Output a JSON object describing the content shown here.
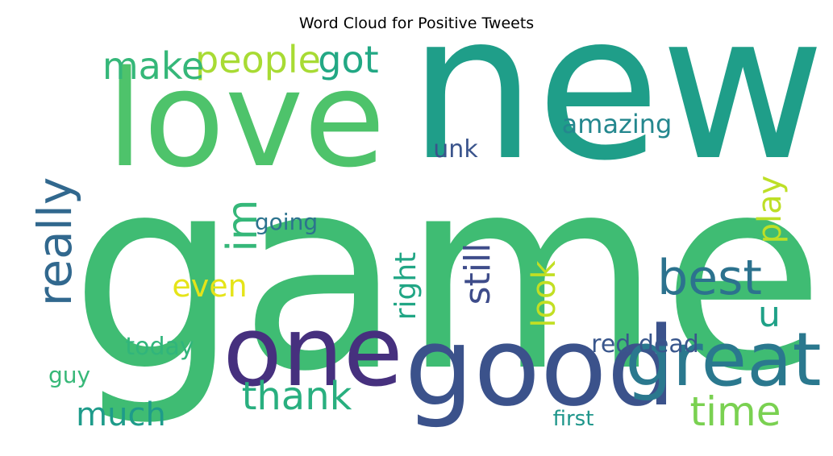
{
  "chart_data": {
    "type": "wordcloud",
    "title": "Word Cloud for Positive Tweets",
    "words": [
      {
        "text": "game",
        "color": "#3fbc73"
      },
      {
        "text": "new",
        "color": "#1f9e89"
      },
      {
        "text": "love",
        "color": "#4ec36b"
      },
      {
        "text": "good",
        "color": "#3b528b"
      },
      {
        "text": "one",
        "color": "#46307e"
      },
      {
        "text": "great",
        "color": "#2a788e"
      },
      {
        "text": "people",
        "color": "#a8db34"
      },
      {
        "text": "make",
        "color": "#35b779"
      },
      {
        "text": "got",
        "color": "#22a884"
      },
      {
        "text": "really",
        "color": "#31688e"
      },
      {
        "text": "best",
        "color": "#2c728e"
      },
      {
        "text": "thank",
        "color": "#29af7f"
      },
      {
        "text": "time",
        "color": "#7ad151"
      },
      {
        "text": "much",
        "color": "#1e9b8a"
      },
      {
        "text": "im",
        "color": "#35b779"
      },
      {
        "text": "even",
        "color": "#e5e419"
      },
      {
        "text": "still",
        "color": "#3e4c8a"
      },
      {
        "text": "look",
        "color": "#c2df23"
      },
      {
        "text": "right",
        "color": "#21a685"
      },
      {
        "text": "u",
        "color": "#1fa187"
      },
      {
        "text": "play",
        "color": "#bddf26"
      },
      {
        "text": "amazing",
        "color": "#24878e"
      },
      {
        "text": "unk",
        "color": "#3a548c"
      },
      {
        "text": "going",
        "color": "#2c738e"
      },
      {
        "text": "today",
        "color": "#31b57b"
      },
      {
        "text": "red dead",
        "color": "#39568c"
      },
      {
        "text": "guy",
        "color": "#37b878"
      },
      {
        "text": "first",
        "color": "#1f968b"
      },
      {
        "text": "really",
        "color": "#31688e"
      }
    ]
  }
}
